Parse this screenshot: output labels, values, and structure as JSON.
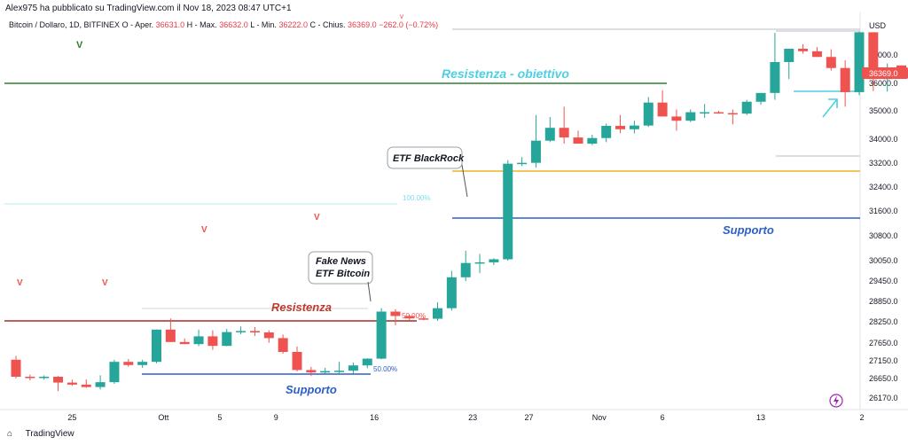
{
  "attribution": "Alex975 ha pubblicato su TradingView.com il Nov 18, 2023 08:47 UTC+1",
  "legend": {
    "symbol": "Bitcoin / Dollaro, 1D, BITFINEX",
    "o_label": "O - Aper.",
    "o_value": "36631.0",
    "h_label": "H - Max.",
    "h_value": "36632.0",
    "l_label": "L - Min.",
    "l_value": "36222.0",
    "c_label": "C - Chius.",
    "c_value": "36369.0",
    "change": "−262.0 (−0.72%)"
  },
  "brand": "TradingView",
  "colors": {
    "up": "#26a69a",
    "down": "#ef5350",
    "resist": "#a52a2a",
    "support": "#2e5fc9",
    "green_line": "#2e7d32",
    "orange_line": "#f0b429",
    "cyan": "#4dd0e1"
  },
  "chart_data": {
    "type": "candlestick",
    "currency": "USD",
    "last_price_label": "36369.0",
    "y_ticks": [
      "37000.0",
      "36000.0",
      "35000.0",
      "34000.0",
      "33200.0",
      "32400.0",
      "31600.0",
      "30800.0",
      "30050.0",
      "29450.0",
      "28850.0",
      "28250.0",
      "27650.0",
      "27150.0",
      "26650.0",
      "26170.0"
    ],
    "x_ticks": [
      "25",
      "Ott",
      "5",
      "9",
      "16",
      "23",
      "27",
      "Nov",
      "6",
      "13",
      "2"
    ],
    "candles": [
      [
        27180,
        27290,
        26650,
        26700
      ],
      [
        26700,
        26760,
        26600,
        26690
      ],
      [
        26690,
        26740,
        26620,
        26700
      ],
      [
        26700,
        26720,
        26340,
        26550
      ],
      [
        26550,
        26620,
        26470,
        26500
      ],
      [
        26500,
        26630,
        26420,
        26440
      ],
      [
        26440,
        26740,
        26380,
        26560
      ],
      [
        26560,
        27180,
        26520,
        27120
      ],
      [
        27120,
        27200,
        26980,
        27030
      ],
      [
        27030,
        27180,
        26950,
        27120
      ],
      [
        27120,
        28030,
        27080,
        28030
      ],
      [
        28030,
        28350,
        27780,
        27680
      ],
      [
        27680,
        27780,
        27620,
        27620
      ],
      [
        27620,
        28030,
        27560,
        27840
      ],
      [
        27840,
        28010,
        27460,
        27570
      ],
      [
        27570,
        28050,
        27560,
        27960
      ],
      [
        27960,
        28120,
        27900,
        27990
      ],
      [
        27990,
        28100,
        27850,
        27950
      ],
      [
        27950,
        28010,
        27660,
        27790
      ],
      [
        27790,
        27890,
        27350,
        27400
      ],
      [
        27400,
        27550,
        26850,
        26890
      ],
      [
        26890,
        26980,
        26720,
        26820
      ],
      [
        26820,
        26950,
        26780,
        26860
      ],
      [
        26860,
        27120,
        26780,
        26870
      ],
      [
        26870,
        27100,
        26780,
        27020
      ],
      [
        27020,
        27220,
        26940,
        27210
      ],
      [
        27210,
        28650,
        27190,
        28550
      ],
      [
        28550,
        28620,
        28150,
        28420
      ],
      [
        28420,
        28460,
        28280,
        28350
      ],
      [
        28350,
        28400,
        28300,
        28340
      ],
      [
        28340,
        28820,
        28280,
        28650
      ],
      [
        28650,
        29750,
        28580,
        29560
      ],
      [
        29560,
        30350,
        29450,
        29980
      ],
      [
        29980,
        30250,
        29680,
        30000
      ],
      [
        30000,
        30120,
        29920,
        30090
      ],
      [
        30090,
        33300,
        30050,
        33180
      ],
      [
        33180,
        33400,
        33100,
        33210
      ],
      [
        33210,
        34850,
        33050,
        33950
      ],
      [
        33950,
        34780,
        33900,
        34400
      ],
      [
        34400,
        35150,
        33850,
        34060
      ],
      [
        34060,
        34300,
        33900,
        33850
      ],
      [
        33850,
        34160,
        33800,
        34040
      ],
      [
        34040,
        34550,
        33900,
        34470
      ],
      [
        34470,
        34850,
        34210,
        34350
      ],
      [
        34350,
        34650,
        34200,
        34480
      ],
      [
        34480,
        35500,
        34430,
        35300
      ],
      [
        35300,
        35750,
        34900,
        34800
      ],
      [
        34800,
        35050,
        34300,
        34650
      ],
      [
        34650,
        35050,
        34600,
        34950
      ],
      [
        34950,
        35250,
        34750,
        34950
      ],
      [
        34950,
        35000,
        34900,
        34920
      ],
      [
        34920,
        35050,
        34520,
        34900
      ],
      [
        34900,
        35400,
        34850,
        35330
      ],
      [
        35330,
        35650,
        35220,
        35650
      ],
      [
        35650,
        37780,
        35400,
        36750
      ],
      [
        36750,
        37200,
        36150,
        37220
      ],
      [
        37220,
        37380,
        37050,
        37130
      ],
      [
        37130,
        37280,
        36950,
        36930
      ],
      [
        36930,
        37200,
        36450,
        36540
      ],
      [
        36540,
        36810,
        35150,
        35680
      ],
      [
        35680,
        37820,
        35570,
        37800
      ],
      [
        37800,
        37700,
        35720,
        36150
      ],
      [
        36150,
        36700,
        35700,
        36500
      ],
      [
        36631,
        36632,
        36222,
        36369
      ]
    ],
    "annotations": [
      {
        "text": "Resistenza - obiettivo",
        "color": "#4dd0e1"
      },
      {
        "text": "ETF BlackRock",
        "color": "#131722"
      },
      {
        "text": "Fake News",
        "color": "#131722"
      },
      {
        "text": "ETF Bitcoin",
        "color": "#131722"
      },
      {
        "text": "Resistenza",
        "color": "#c0392b"
      },
      {
        "text": "Supporto",
        "color": "#2e5fc9"
      },
      {
        "text": "Supporto",
        "color": "#2e5fc9"
      },
      {
        "text": "50.00%",
        "color": "#2e5fc9"
      },
      {
        "text": "50.00%",
        "color": "#ef5350"
      },
      {
        "text": "100.00%",
        "color": "#4dd0e1"
      }
    ],
    "markers": [
      "V",
      "V",
      "V",
      "V",
      "V"
    ]
  }
}
